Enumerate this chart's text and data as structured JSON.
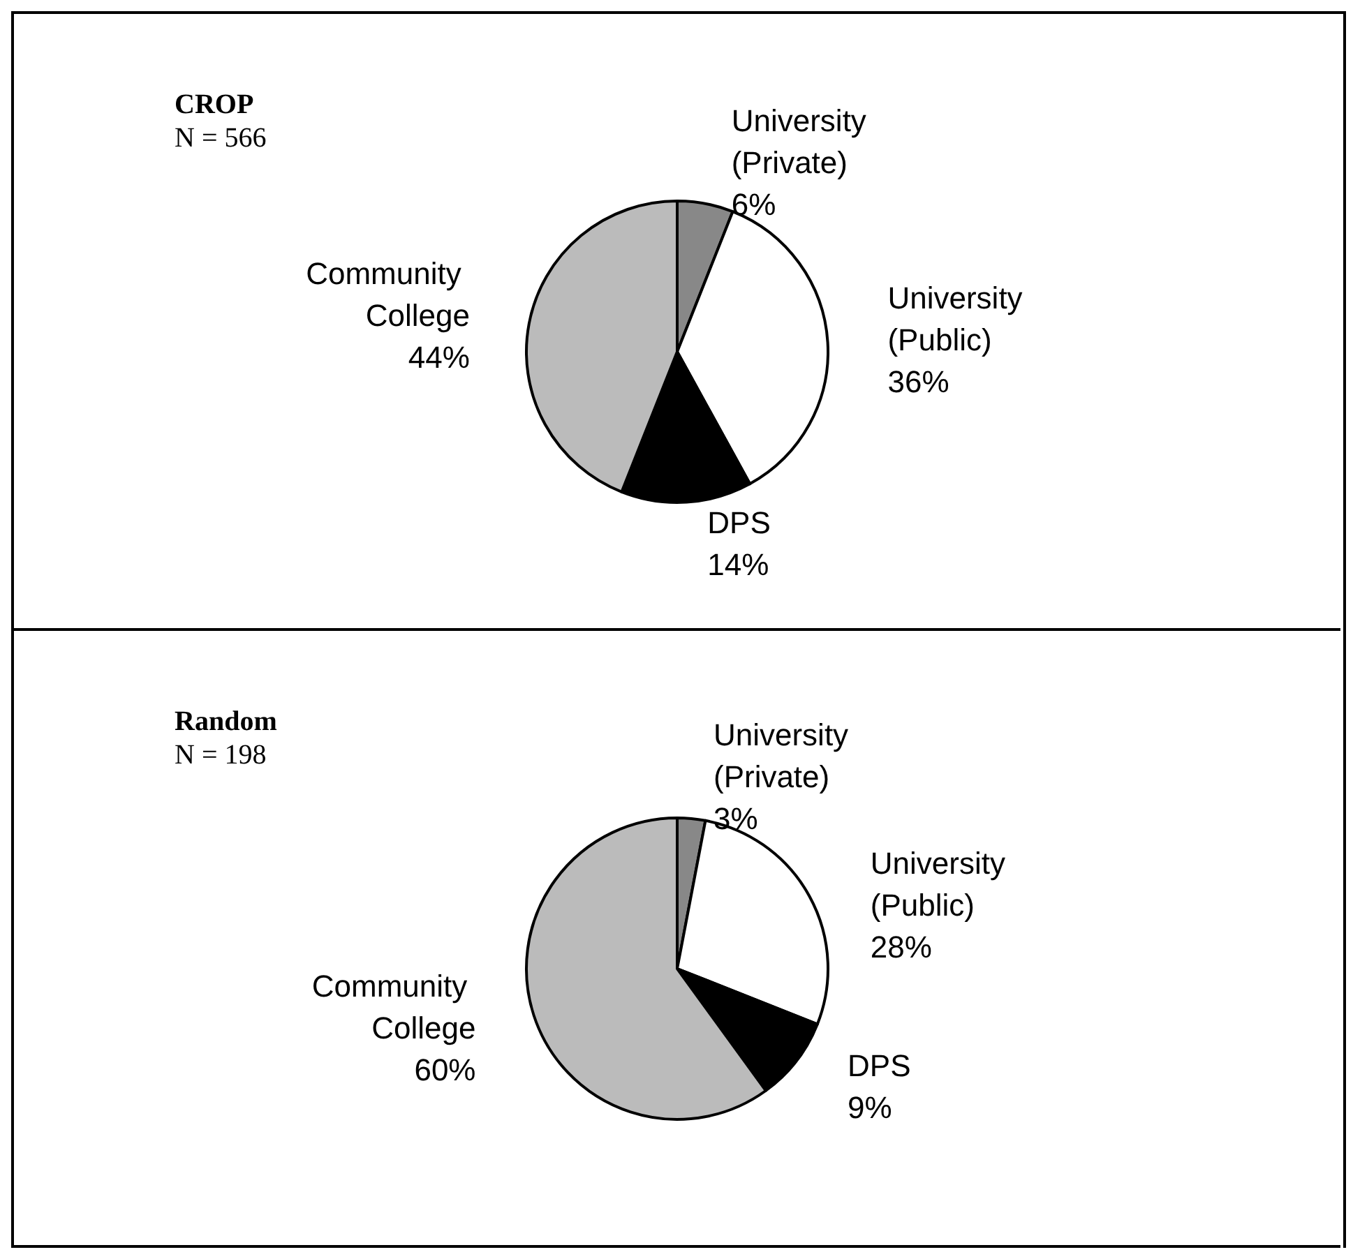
{
  "chart_data": [
    {
      "type": "pie",
      "title": "CROP",
      "subtitle": "N = 566",
      "categories": [
        "University (Private)",
        "University (Public)",
        "DPS",
        "Community College"
      ],
      "values": [
        6,
        36,
        14,
        44
      ],
      "value_labels": [
        "6%",
        "36%",
        "14%",
        "44%"
      ],
      "colors": [
        "#888888",
        "#ffffff",
        "#000000",
        "#bbbbbb"
      ],
      "legend": false
    },
    {
      "type": "pie",
      "title": "Random",
      "subtitle": "N = 198",
      "categories": [
        "University (Private)",
        "University (Public)",
        "DPS",
        "Community College"
      ],
      "values": [
        3,
        28,
        9,
        60
      ],
      "value_labels": [
        "3%",
        "28%",
        "9%",
        "60%"
      ],
      "colors": [
        "#888888",
        "#ffffff",
        "#000000",
        "#bbbbbb"
      ],
      "legend": false
    }
  ]
}
